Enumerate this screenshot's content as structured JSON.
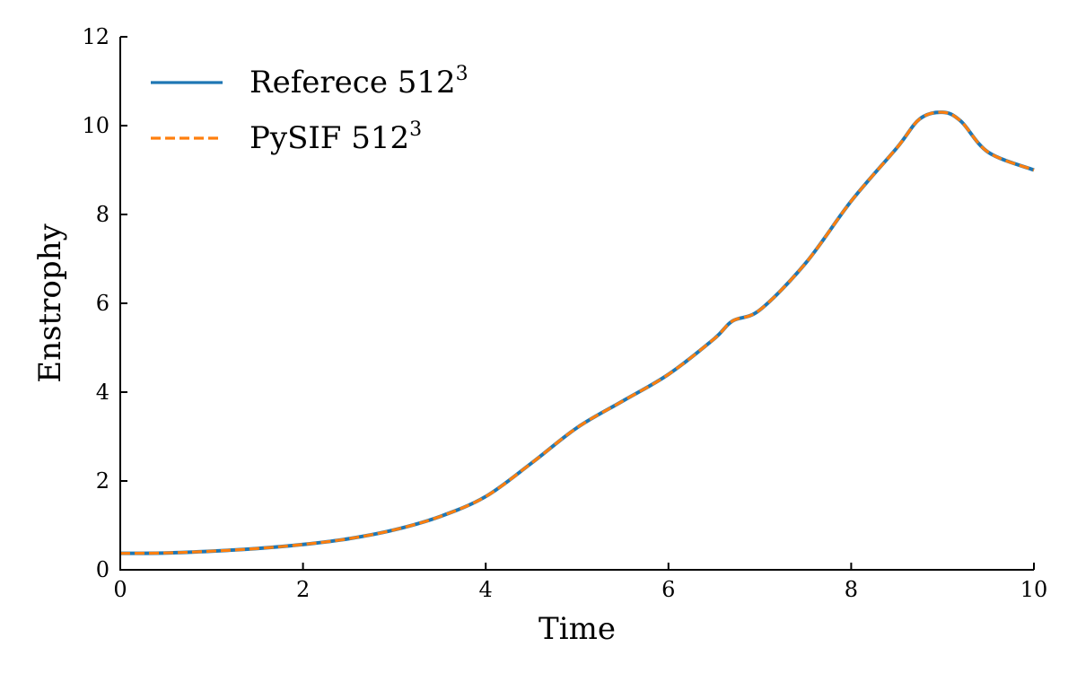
{
  "chart_data": {
    "type": "line",
    "xlabel": "Time",
    "ylabel": "Enstrophy",
    "xlim": [
      0,
      10
    ],
    "ylim": [
      0,
      12
    ],
    "xticks": [
      0,
      2,
      4,
      6,
      8,
      10
    ],
    "yticks": [
      0,
      2,
      4,
      6,
      8,
      10,
      12
    ],
    "xtick_labels": [
      "0",
      "2",
      "4",
      "6",
      "8",
      "10"
    ],
    "ytick_labels": [
      "0",
      "2",
      "4",
      "6",
      "8",
      "10",
      "12"
    ],
    "grid": false,
    "legend_position": "top-left",
    "series": [
      {
        "name": "Referece 512",
        "name_superscript": "3",
        "color": "#1f77b4",
        "style": "solid",
        "x": [
          0,
          0.5,
          1.0,
          1.5,
          2.0,
          2.5,
          3.0,
          3.5,
          4.0,
          4.5,
          5.0,
          5.5,
          6.0,
          6.5,
          6.7,
          7.0,
          7.5,
          8.0,
          8.5,
          8.75,
          9.0,
          9.2,
          9.5,
          10.0
        ],
        "y": [
          0.37,
          0.38,
          0.42,
          0.48,
          0.57,
          0.7,
          0.9,
          1.2,
          1.65,
          2.4,
          3.2,
          3.8,
          4.4,
          5.2,
          5.6,
          5.85,
          6.9,
          8.3,
          9.5,
          10.15,
          10.3,
          10.1,
          9.4,
          9.0
        ]
      },
      {
        "name": "PySIF 512",
        "name_superscript": "3",
        "color": "#ff7f0e",
        "style": "dashed",
        "x": [
          0,
          0.5,
          1.0,
          1.5,
          2.0,
          2.5,
          3.0,
          3.5,
          4.0,
          4.5,
          5.0,
          5.5,
          6.0,
          6.5,
          6.7,
          7.0,
          7.5,
          8.0,
          8.5,
          8.75,
          9.0,
          9.2,
          9.5,
          10.0
        ],
        "y": [
          0.37,
          0.38,
          0.42,
          0.48,
          0.57,
          0.7,
          0.9,
          1.2,
          1.65,
          2.4,
          3.2,
          3.8,
          4.4,
          5.2,
          5.6,
          5.85,
          6.9,
          8.3,
          9.5,
          10.15,
          10.3,
          10.1,
          9.4,
          9.0
        ]
      }
    ]
  }
}
